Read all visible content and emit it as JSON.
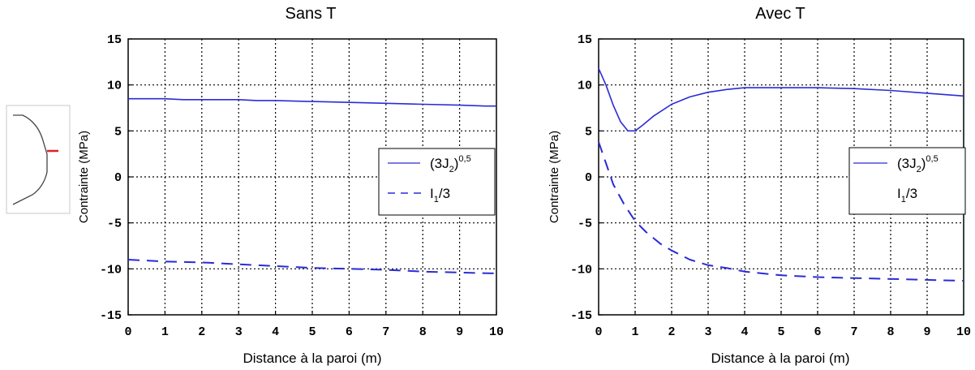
{
  "chart_data": [
    {
      "type": "line",
      "title": "Sans T",
      "xlabel": "Distance à la paroi (m)",
      "ylabel": "Contrainte (MPa)",
      "xlim": [
        0,
        10
      ],
      "ylim": [
        -15,
        15
      ],
      "xticks": [
        0,
        1,
        2,
        3,
        4,
        5,
        6,
        7,
        8,
        9,
        10
      ],
      "yticks": [
        15,
        10,
        5,
        0,
        -5,
        -10,
        -15
      ],
      "grid": true,
      "legend_position": "right",
      "series": [
        {
          "legend": {
            "base": "(3J",
            "sub": "2",
            "mid": ")",
            "sup": "0,5"
          },
          "style": "solid",
          "color": "#2b2bd6",
          "x": [
            0,
            0.5,
            1,
            1.5,
            2,
            3,
            3.5,
            4,
            5,
            6,
            7,
            8,
            9,
            9.7,
            10
          ],
          "y": [
            8.5,
            8.5,
            8.5,
            8.4,
            8.4,
            8.4,
            8.3,
            8.3,
            8.2,
            8.1,
            8.0,
            7.9,
            7.8,
            7.7,
            7.7
          ]
        },
        {
          "legend": {
            "base": "I",
            "sub": "1",
            "mid": "/3",
            "sup": ""
          },
          "style": "dashed",
          "color": "#2b2bd6",
          "x": [
            0,
            1,
            2,
            3,
            4,
            5,
            6,
            7,
            8,
            9,
            10
          ],
          "y": [
            -9.0,
            -9.2,
            -9.3,
            -9.5,
            -9.7,
            -9.9,
            -10.0,
            -10.1,
            -10.3,
            -10.4,
            -10.5
          ]
        }
      ]
    },
    {
      "type": "line",
      "title": "Avec T",
      "xlabel": "Distance à la paroi (m)",
      "ylabel": "Contrainte (MPa)",
      "xlim": [
        0,
        10
      ],
      "ylim": [
        -15,
        15
      ],
      "xticks": [
        0,
        1,
        2,
        3,
        4,
        5,
        6,
        7,
        8,
        9,
        10
      ],
      "yticks": [
        15,
        10,
        5,
        0,
        -5,
        -10,
        -15
      ],
      "grid": true,
      "legend_position": "right",
      "series": [
        {
          "legend": {
            "base": "(3J",
            "sub": "2",
            "mid": ")",
            "sup": "0,5"
          },
          "style": "solid",
          "color": "#2b2bd6",
          "x": [
            0,
            0.2,
            0.4,
            0.6,
            0.8,
            1.0,
            1.2,
            1.5,
            2.0,
            2.5,
            3.0,
            3.5,
            4.0,
            5.0,
            6.0,
            7.0,
            8.0,
            9.0,
            10.0
          ],
          "y": [
            11.8,
            10.0,
            7.8,
            6.0,
            5.0,
            5.0,
            5.6,
            6.6,
            7.9,
            8.7,
            9.2,
            9.5,
            9.7,
            9.7,
            9.7,
            9.6,
            9.4,
            9.1,
            8.8
          ]
        },
        {
          "legend": {
            "base": "I",
            "sub": "1",
            "mid": "/3",
            "sup": ""
          },
          "style": "dashed",
          "color": "#2b2bd6",
          "x": [
            0,
            0.2,
            0.4,
            0.7,
            1.0,
            1.3,
            1.7,
            2.0,
            2.5,
            3.0,
            3.5,
            4.0,
            5.0,
            6.0,
            7.0,
            8.0,
            9.0,
            10.0
          ],
          "y": [
            3.8,
            1.5,
            -0.8,
            -3.0,
            -4.8,
            -6.0,
            -7.3,
            -8.0,
            -9.0,
            -9.6,
            -9.9,
            -10.3,
            -10.7,
            -10.9,
            -11.0,
            -11.1,
            -11.2,
            -11.3
          ]
        }
      ]
    }
  ]
}
